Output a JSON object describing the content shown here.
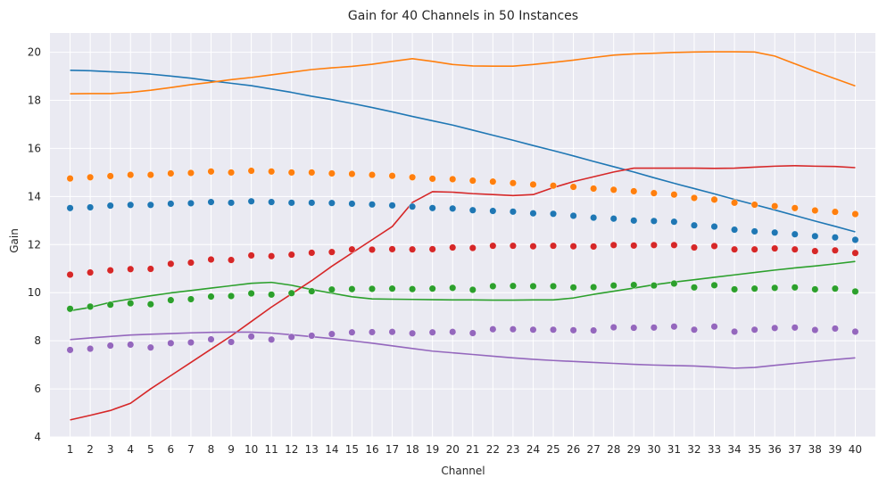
{
  "chart_data": {
    "type": "line",
    "title": "Gain for 40 Channels in 50 Instances",
    "xlabel": "Channel",
    "ylabel": "Gain",
    "ylim": [
      4,
      20.8
    ],
    "xlim": [
      0,
      41
    ],
    "yticks": [
      4,
      6,
      8,
      10,
      12,
      14,
      16,
      18,
      20
    ],
    "grid": true,
    "legend": "none",
    "x": [
      1,
      2,
      3,
      4,
      5,
      6,
      7,
      8,
      9,
      10,
      11,
      12,
      13,
      14,
      15,
      16,
      17,
      18,
      19,
      20,
      21,
      22,
      23,
      24,
      25,
      26,
      27,
      28,
      29,
      30,
      31,
      32,
      33,
      34,
      35,
      36,
      37,
      38,
      39,
      40
    ],
    "lines": [
      {
        "color": "#1f77b4",
        "values": [
          19.25,
          19.23,
          19.19,
          19.15,
          19.09,
          19.01,
          18.92,
          18.81,
          18.71,
          18.61,
          18.47,
          18.33,
          18.17,
          18.03,
          17.87,
          17.7,
          17.52,
          17.33,
          17.15,
          16.97,
          16.76,
          16.55,
          16.34,
          16.12,
          15.91,
          15.69,
          15.46,
          15.24,
          15.02,
          14.78,
          14.55,
          14.33,
          14.11,
          13.88,
          13.66,
          13.44,
          13.21,
          12.98,
          12.76,
          12.53
        ]
      },
      {
        "color": "#ff7f0e",
        "values": [
          18.27,
          18.28,
          18.28,
          18.33,
          18.42,
          18.53,
          18.65,
          18.75,
          18.86,
          18.95,
          19.06,
          19.17,
          19.28,
          19.35,
          19.41,
          19.5,
          19.62,
          19.73,
          19.62,
          19.49,
          19.43,
          19.42,
          19.42,
          19.49,
          19.58,
          19.67,
          19.78,
          19.88,
          19.93,
          19.96,
          19.99,
          20.01,
          20.02,
          20.02,
          20.01,
          19.84,
          19.52,
          19.2,
          18.9,
          18.6
        ]
      },
      {
        "color": "#2ca02c",
        "values": [
          9.25,
          9.39,
          9.6,
          9.74,
          9.87,
          9.99,
          10.09,
          10.19,
          10.29,
          10.39,
          10.43,
          10.31,
          10.13,
          9.98,
          9.83,
          9.74,
          9.73,
          9.72,
          9.71,
          9.7,
          9.7,
          9.69,
          9.69,
          9.7,
          9.7,
          9.78,
          9.93,
          10.06,
          10.19,
          10.33,
          10.44,
          10.54,
          10.64,
          10.74,
          10.84,
          10.94,
          11.03,
          11.11,
          11.2,
          11.3
        ]
      },
      {
        "color": "#d62728",
        "values": [
          4.71,
          4.9,
          5.1,
          5.4,
          6.0,
          6.55,
          7.1,
          7.65,
          8.2,
          8.8,
          9.4,
          9.95,
          10.5,
          11.1,
          11.65,
          12.2,
          12.75,
          13.75,
          14.2,
          14.18,
          14.12,
          14.08,
          14.04,
          14.08,
          14.37,
          14.62,
          14.82,
          15.02,
          15.18,
          15.18,
          15.18,
          15.18,
          15.17,
          15.18,
          15.22,
          15.26,
          15.28,
          15.26,
          15.25,
          15.2
        ]
      },
      {
        "color": "#9467bd",
        "values": [
          8.05,
          8.12,
          8.18,
          8.24,
          8.27,
          8.3,
          8.33,
          8.35,
          8.36,
          8.36,
          8.32,
          8.25,
          8.17,
          8.09,
          8.0,
          7.9,
          7.79,
          7.68,
          7.57,
          7.5,
          7.43,
          7.36,
          7.29,
          7.23,
          7.18,
          7.14,
          7.1,
          7.06,
          7.02,
          6.99,
          6.97,
          6.95,
          6.91,
          6.86,
          6.89,
          6.98,
          7.06,
          7.14,
          7.22,
          7.29
        ]
      }
    ],
    "scatter": [
      {
        "color": "#1f77b4",
        "values": [
          13.52,
          13.55,
          13.62,
          13.65,
          13.65,
          13.7,
          13.72,
          13.77,
          13.74,
          13.8,
          13.77,
          13.74,
          13.74,
          13.73,
          13.7,
          13.67,
          13.63,
          13.58,
          13.52,
          13.5,
          13.43,
          13.4,
          13.37,
          13.3,
          13.28,
          13.2,
          13.12,
          13.08,
          13.0,
          12.98,
          12.95,
          12.8,
          12.75,
          12.62,
          12.55,
          12.5,
          12.43,
          12.35,
          12.3,
          12.2
        ]
      },
      {
        "color": "#ff7f0e",
        "values": [
          14.75,
          14.8,
          14.85,
          14.9,
          14.9,
          14.96,
          14.98,
          15.04,
          15.0,
          15.07,
          15.04,
          15.0,
          15.0,
          14.96,
          14.94,
          14.9,
          14.86,
          14.8,
          14.74,
          14.72,
          14.66,
          14.62,
          14.56,
          14.5,
          14.45,
          14.4,
          14.33,
          14.28,
          14.22,
          14.14,
          14.08,
          13.94,
          13.87,
          13.74,
          13.66,
          13.6,
          13.52,
          13.42,
          13.36,
          13.27
        ]
      },
      {
        "color": "#2ca02c",
        "values": [
          9.33,
          9.42,
          9.5,
          9.56,
          9.52,
          9.69,
          9.73,
          9.84,
          9.86,
          9.97,
          9.92,
          9.98,
          10.06,
          10.13,
          10.15,
          10.16,
          10.17,
          10.15,
          10.17,
          10.2,
          10.12,
          10.27,
          10.28,
          10.27,
          10.27,
          10.22,
          10.23,
          10.3,
          10.32,
          10.3,
          10.38,
          10.22,
          10.31,
          10.14,
          10.17,
          10.2,
          10.22,
          10.14,
          10.17,
          10.05
        ]
      },
      {
        "color": "#d62728",
        "values": [
          10.75,
          10.84,
          10.93,
          10.98,
          10.99,
          11.2,
          11.25,
          11.38,
          11.36,
          11.55,
          11.52,
          11.58,
          11.66,
          11.69,
          11.8,
          11.79,
          11.81,
          11.8,
          11.81,
          11.88,
          11.86,
          11.95,
          11.95,
          11.93,
          11.95,
          11.93,
          11.92,
          11.98,
          11.96,
          11.98,
          11.98,
          11.88,
          11.94,
          11.8,
          11.8,
          11.84,
          11.8,
          11.73,
          11.76,
          11.65
        ]
      },
      {
        "color": "#9467bd",
        "values": [
          7.62,
          7.67,
          7.8,
          7.84,
          7.72,
          7.9,
          7.93,
          8.06,
          7.95,
          8.18,
          8.05,
          8.16,
          8.21,
          8.28,
          8.35,
          8.36,
          8.37,
          8.31,
          8.35,
          8.37,
          8.32,
          8.48,
          8.48,
          8.46,
          8.46,
          8.44,
          8.43,
          8.56,
          8.54,
          8.55,
          8.59,
          8.46,
          8.59,
          8.38,
          8.46,
          8.53,
          8.55,
          8.45,
          8.51,
          8.38
        ]
      }
    ]
  }
}
